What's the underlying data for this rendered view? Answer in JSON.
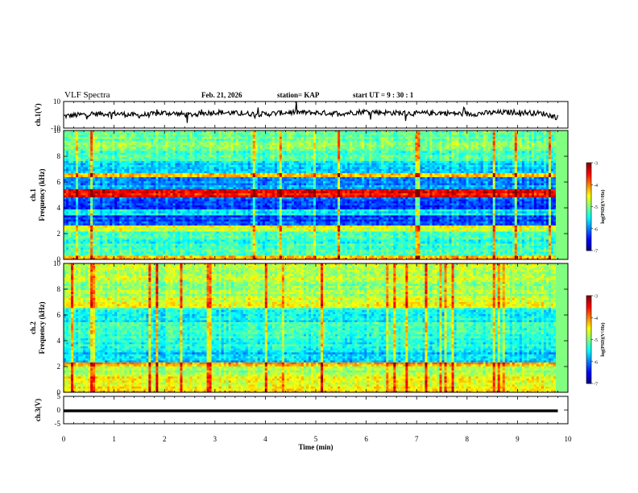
{
  "header": {
    "title": "VLF Spectra",
    "date": "Feb. 21, 2026",
    "station": "station= KAP",
    "start_ut": "start  UT =  9 : 30 : 1"
  },
  "chart_data": [
    {
      "type": "line",
      "panel": "ch1-amplitude",
      "ylabel": "ch.1(V)",
      "ylim": [
        -10,
        10
      ],
      "yticks": [
        "10",
        "-10"
      ],
      "xlim": [
        0,
        10
      ],
      "line_color": "#000000",
      "approx_level_V": 1.5,
      "t": [
        0,
        0.5,
        1,
        1.5,
        2,
        2.5,
        3,
        3.5,
        4,
        4.5,
        5,
        5.5,
        6,
        6.5,
        7,
        7.5,
        8,
        8.5,
        9,
        9.5,
        9.8
      ],
      "values": [
        -1,
        0.5,
        1,
        -0.5,
        1.5,
        0,
        2,
        1,
        0.5,
        2,
        1.5,
        1,
        2.5,
        1.5,
        1,
        1.5,
        0.5,
        1.5,
        2,
        1,
        -2
      ]
    },
    {
      "type": "heatmap",
      "panel": "ch1-spectrogram",
      "ylabel": "ch.1\nFrequency (kHz)",
      "ylim": [
        0,
        10
      ],
      "yticks": [
        "0",
        "2",
        "4",
        "6",
        "8",
        "10"
      ],
      "xlim": [
        0,
        10
      ],
      "zlim": [
        -7,
        -3
      ],
      "colorbar_label": "log(PSD)(V²/Hz)",
      "colorbar_ticks": [
        "-3",
        "-4",
        "-5",
        "-6",
        "-7"
      ],
      "bands_khz": [
        {
          "from": 0,
          "to": 0.3,
          "level": -4.3
        },
        {
          "from": 0.3,
          "to": 2.2,
          "level": -5.3
        },
        {
          "from": 2.2,
          "to": 2.6,
          "level": -4.6
        },
        {
          "from": 2.6,
          "to": 3.4,
          "level": -6.2
        },
        {
          "from": 3.4,
          "to": 3.9,
          "level": -5.5
        },
        {
          "from": 3.9,
          "to": 4.9,
          "level": -6.2
        },
        {
          "from": 4.9,
          "to": 5.4,
          "level": -3.5
        },
        {
          "from": 5.4,
          "to": 6.4,
          "level": -5.9
        },
        {
          "from": 6.4,
          "to": 6.7,
          "level": -4.3
        },
        {
          "from": 6.7,
          "to": 7.6,
          "level": -5.6
        },
        {
          "from": 7.6,
          "to": 8.4,
          "level": -5.2
        },
        {
          "from": 8.4,
          "to": 10,
          "level": -5.0
        }
      ]
    },
    {
      "type": "heatmap",
      "panel": "ch2-spectrogram",
      "ylabel": "ch.2\nFrequency (kHz)",
      "ylim": [
        0,
        10
      ],
      "yticks": [
        "0",
        "2",
        "4",
        "6",
        "8",
        "10"
      ],
      "xlim": [
        0,
        10
      ],
      "zlim": [
        -7,
        -3
      ],
      "colorbar_label": "log(PSD)(V²/Hz)",
      "colorbar_ticks": [
        "-3",
        "-4",
        "-5",
        "-6",
        "-7"
      ],
      "bands_khz": [
        {
          "from": 0,
          "to": 0.3,
          "level": -4.4
        },
        {
          "from": 0.3,
          "to": 1.4,
          "level": -4.6
        },
        {
          "from": 1.4,
          "to": 2.1,
          "level": -4.9
        },
        {
          "from": 2.1,
          "to": 2.3,
          "level": -4.2
        },
        {
          "from": 2.3,
          "to": 3.3,
          "level": -5.7
        },
        {
          "from": 3.3,
          "to": 4.5,
          "level": -5.4
        },
        {
          "from": 4.5,
          "to": 5.5,
          "level": -5.3
        },
        {
          "from": 5.5,
          "to": 6.6,
          "level": -5.5
        },
        {
          "from": 6.6,
          "to": 7.3,
          "level": -4.6
        },
        {
          "from": 7.3,
          "to": 8.6,
          "level": -4.9
        },
        {
          "from": 8.6,
          "to": 10,
          "level": -4.8
        }
      ]
    },
    {
      "type": "line",
      "panel": "ch3-amplitude",
      "ylabel": "ch.3(V)",
      "ylim": [
        -5,
        5
      ],
      "yticks": [
        "5",
        "0",
        "-5"
      ],
      "xlim": [
        0,
        10
      ],
      "xlabel": "Time (min)",
      "xticks": [
        "0",
        "1",
        "2",
        "3",
        "4",
        "5",
        "6",
        "7",
        "8",
        "9",
        "10"
      ],
      "line_color": "#000000",
      "value_range": [
        -0.8,
        0.2
      ],
      "data_end_min": 9.8
    }
  ]
}
